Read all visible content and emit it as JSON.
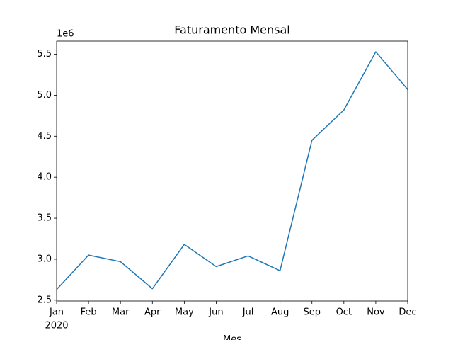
{
  "chart_data": {
    "type": "line",
    "title": "Faturamento Mensal",
    "x_label": "Mes",
    "categories": [
      "Jan",
      "Feb",
      "Mar",
      "Apr",
      "May",
      "Jun",
      "Jul",
      "Aug",
      "Sep",
      "Oct",
      "Nov",
      "Dec"
    ],
    "x_secondary_label": "2020",
    "series": [
      {
        "color": "#1f77b4",
        "values": [
          2630000,
          3050000,
          2970000,
          2640000,
          3180000,
          2910000,
          3040000,
          2860000,
          4450000,
          4820000,
          5530000,
          5070000
        ]
      }
    ],
    "ylim": [
      2490000,
      5660000
    ],
    "y_offset_label": "1e6",
    "yticks": [
      {
        "value": 2500000,
        "label": "2.5"
      },
      {
        "value": 3000000,
        "label": "3.0"
      },
      {
        "value": 3500000,
        "label": "3.5"
      },
      {
        "value": 4000000,
        "label": "4.0"
      },
      {
        "value": 4500000,
        "label": "4.5"
      },
      {
        "value": 5000000,
        "label": "5.0"
      },
      {
        "value": 5500000,
        "label": "5.5"
      }
    ],
    "grid": false
  }
}
